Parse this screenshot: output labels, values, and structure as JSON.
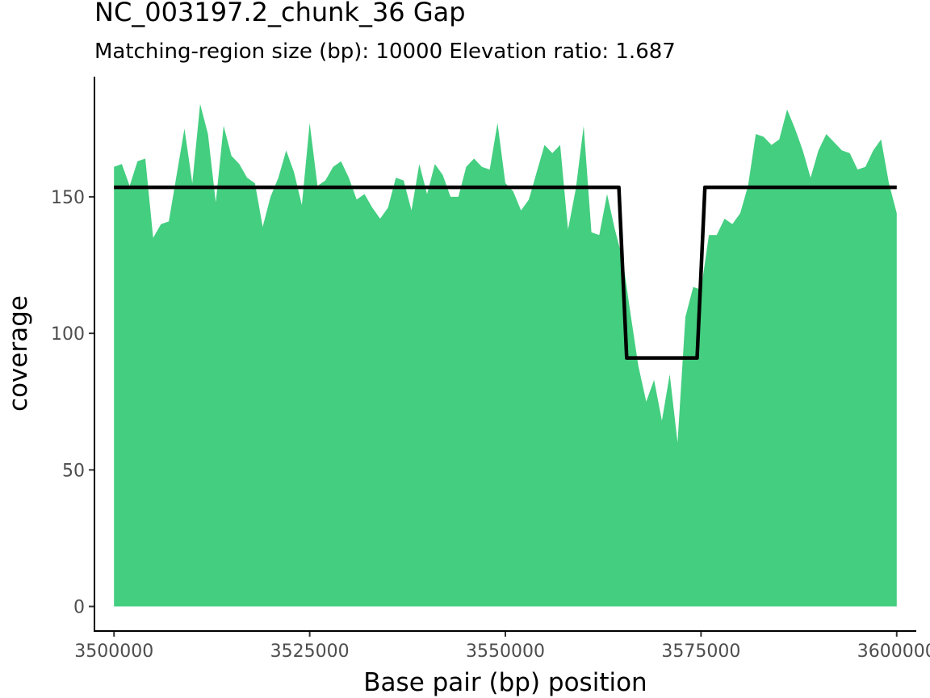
{
  "chart_data": {
    "type": "area",
    "title": "NC_003197.2_chunk_36 Gap",
    "subtitle": "Matching-region size (bp): 10000 Elevation ratio: 1.687",
    "xlabel": "Base pair (bp) position",
    "ylabel": "coverage",
    "xlim": [
      3497500,
      3602500
    ],
    "ylim": [
      -9,
      194
    ],
    "x_ticks": [
      3500000,
      3525000,
      3550000,
      3575000,
      3600000
    ],
    "x_tick_labels": [
      "3500000",
      "3525000",
      "3550000",
      "3575000",
      "3600000"
    ],
    "y_ticks": [
      0,
      50,
      100,
      150
    ],
    "y_tick_labels": [
      "0",
      "50",
      "100",
      "150"
    ],
    "grid": false,
    "legend": "none",
    "colors": {
      "area": "#44ce80",
      "line": "#000000",
      "axis": "#000000"
    },
    "coverage": {
      "x": [
        3500000,
        3501000,
        3502000,
        3503000,
        3504000,
        3505000,
        3506000,
        3507000,
        3508000,
        3509000,
        3510000,
        3511000,
        3512000,
        3513000,
        3514000,
        3515000,
        3516000,
        3517000,
        3518000,
        3519000,
        3520000,
        3521000,
        3522000,
        3523000,
        3524000,
        3525000,
        3526000,
        3527000,
        3528000,
        3529000,
        3530000,
        3531000,
        3532000,
        3533000,
        3534000,
        3535000,
        3536000,
        3537000,
        3538000,
        3539000,
        3540000,
        3541000,
        3542000,
        3543000,
        3544000,
        3545000,
        3546000,
        3547000,
        3548000,
        3549000,
        3550000,
        3551000,
        3552000,
        3553000,
        3554000,
        3555000,
        3556000,
        3557000,
        3558000,
        3559000,
        3560000,
        3561000,
        3562000,
        3563000,
        3564000,
        3565000,
        3566000,
        3567000,
        3568000,
        3569000,
        3570000,
        3571000,
        3572000,
        3573000,
        3574000,
        3575000,
        3576000,
        3577000,
        3578000,
        3579000,
        3580000,
        3581000,
        3582000,
        3583000,
        3584000,
        3585000,
        3586000,
        3587000,
        3588000,
        3589000,
        3590000,
        3591000,
        3592000,
        3593000,
        3594000,
        3595000,
        3596000,
        3597000,
        3598000,
        3599000,
        3600000
      ],
      "y": [
        161,
        162,
        154,
        163,
        164,
        135,
        140,
        141,
        158,
        175,
        155,
        184,
        173,
        148,
        176,
        165,
        162,
        157,
        155,
        139,
        150,
        157,
        167,
        159,
        147,
        177,
        154,
        156,
        161,
        163,
        157,
        149,
        151,
        146,
        142,
        146,
        157,
        156,
        145,
        162,
        151,
        162,
        158,
        150,
        150,
        161,
        164,
        161,
        160,
        177,
        155,
        152,
        145,
        149,
        159,
        169,
        166,
        169,
        138,
        153,
        176,
        137,
        136,
        151,
        138,
        127,
        107,
        88,
        75,
        83,
        68,
        85,
        60,
        106,
        117,
        116,
        136,
        136,
        142,
        140,
        144,
        154,
        173,
        172,
        169,
        171,
        182,
        175,
        167,
        157,
        167,
        173,
        170,
        167,
        166,
        160,
        161,
        167,
        171,
        155,
        144
      ]
    },
    "fit_line": {
      "x": [
        3500000,
        3564500,
        3565500,
        3574500,
        3575500,
        3600000
      ],
      "y": [
        153.5,
        153.5,
        91,
        91,
        153.5,
        153.5
      ]
    }
  }
}
